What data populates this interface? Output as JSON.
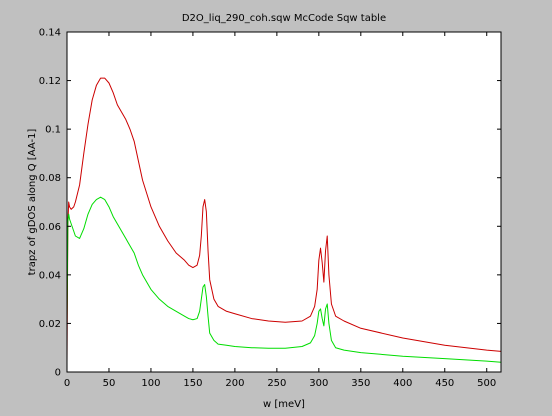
{
  "chart_data": {
    "type": "line",
    "title": "D2O_liq_290_coh.sqw McCode Sqw table",
    "xlabel": "w [meV]",
    "ylabel": "trapz of gDOS along Q [AA-1]",
    "xlim": [
      0,
      517
    ],
    "ylim": [
      0,
      0.14
    ],
    "x_ticks": [
      "0",
      "50",
      "100",
      "150",
      "200",
      "250",
      "300",
      "350",
      "400",
      "450",
      "500"
    ],
    "y_ticks": [
      "0",
      "0.02",
      "0.04",
      "0.06",
      "0.08",
      "0.1",
      "0.12",
      "0.14"
    ],
    "grid": false,
    "legend": "none",
    "series": [
      {
        "color": "#cc0000",
        "x": [
          0,
          1,
          2,
          3,
          5,
          8,
          10,
          15,
          20,
          25,
          30,
          35,
          40,
          45,
          50,
          55,
          60,
          65,
          70,
          75,
          80,
          85,
          90,
          100,
          110,
          120,
          130,
          140,
          145,
          150,
          155,
          158,
          160,
          162,
          164,
          166,
          168,
          170,
          175,
          180,
          190,
          200,
          220,
          240,
          260,
          280,
          290,
          295,
          298,
          300,
          302,
          304,
          306,
          308,
          310,
          312,
          315,
          320,
          330,
          350,
          400,
          450,
          500,
          517
        ],
        "y": [
          0.004,
          0.06,
          0.07,
          0.068,
          0.067,
          0.068,
          0.07,
          0.077,
          0.09,
          0.102,
          0.112,
          0.118,
          0.121,
          0.121,
          0.119,
          0.115,
          0.11,
          0.107,
          0.104,
          0.1,
          0.095,
          0.087,
          0.079,
          0.068,
          0.06,
          0.054,
          0.049,
          0.046,
          0.044,
          0.043,
          0.044,
          0.048,
          0.056,
          0.068,
          0.071,
          0.066,
          0.05,
          0.038,
          0.03,
          0.027,
          0.025,
          0.024,
          0.022,
          0.021,
          0.0205,
          0.021,
          0.023,
          0.027,
          0.034,
          0.046,
          0.051,
          0.045,
          0.037,
          0.05,
          0.056,
          0.04,
          0.028,
          0.023,
          0.021,
          0.018,
          0.014,
          0.011,
          0.009,
          0.0085
        ]
      },
      {
        "color": "#00dd00",
        "x": [
          0,
          1,
          2,
          3,
          5,
          8,
          10,
          15,
          20,
          25,
          30,
          35,
          40,
          45,
          50,
          55,
          60,
          65,
          70,
          75,
          80,
          85,
          90,
          100,
          110,
          120,
          130,
          140,
          145,
          150,
          155,
          158,
          160,
          162,
          164,
          166,
          168,
          170,
          175,
          180,
          190,
          200,
          220,
          240,
          260,
          280,
          290,
          295,
          298,
          300,
          302,
          304,
          306,
          308,
          310,
          312,
          315,
          320,
          330,
          350,
          400,
          450,
          500,
          517
        ],
        "y": [
          0.02,
          0.062,
          0.065,
          0.063,
          0.061,
          0.058,
          0.056,
          0.055,
          0.059,
          0.065,
          0.069,
          0.071,
          0.072,
          0.071,
          0.068,
          0.064,
          0.061,
          0.058,
          0.055,
          0.052,
          0.049,
          0.044,
          0.04,
          0.034,
          0.03,
          0.027,
          0.025,
          0.023,
          0.022,
          0.0215,
          0.022,
          0.025,
          0.03,
          0.035,
          0.036,
          0.031,
          0.023,
          0.016,
          0.013,
          0.0115,
          0.011,
          0.0105,
          0.01,
          0.0098,
          0.0098,
          0.0105,
          0.012,
          0.015,
          0.02,
          0.025,
          0.026,
          0.022,
          0.019,
          0.026,
          0.028,
          0.02,
          0.013,
          0.01,
          0.009,
          0.008,
          0.0065,
          0.0055,
          0.0045,
          0.004
        ]
      }
    ]
  }
}
